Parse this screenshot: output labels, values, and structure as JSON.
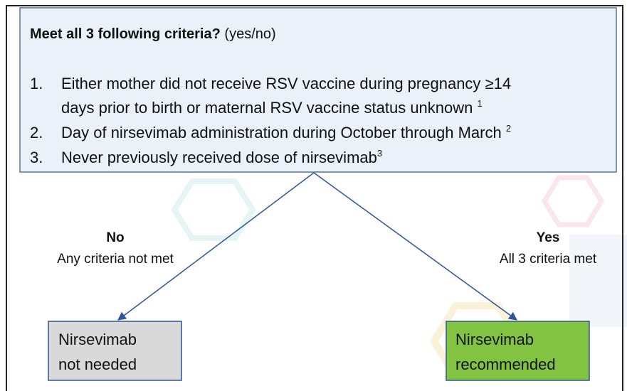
{
  "header": {
    "title_bold": "Meet all 3 following criteria?",
    "title_rest": "(yes/no)"
  },
  "criteria": [
    {
      "number": "1.",
      "lines": [
        "Either mother did not receive RSV vaccine during pregnancy ≥14",
        "days prior to birth or maternal RSV vaccine status unknown"
      ],
      "sup": "1"
    },
    {
      "number": "2.",
      "lines": [
        "Day of nirsevimab administration during October through March"
      ],
      "sup": "2"
    },
    {
      "number": "3.",
      "lines": [
        "Never previously received dose of nirsevimab"
      ],
      "sup": "3"
    }
  ],
  "branches": {
    "no": {
      "label": "No",
      "detail": "Any criteria not met",
      "outcome": [
        "Nirsevimab",
        "not needed"
      ]
    },
    "yes": {
      "label": "Yes",
      "detail": "All 3 criteria met",
      "outcome": [
        "Nirsevimab",
        "recommended"
      ]
    }
  }
}
